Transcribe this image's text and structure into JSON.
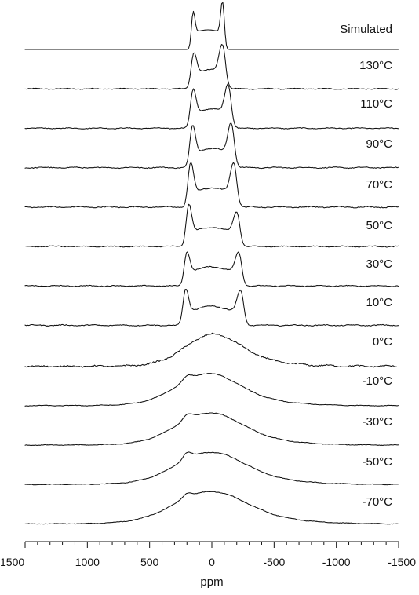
{
  "chart_data": {
    "type": "line",
    "title": "",
    "xlabel": "ppm",
    "ylabel": "",
    "x_range": [
      1500,
      -1500
    ],
    "x_reversed": true,
    "x_ticks": [
      1500,
      1000,
      500,
      0,
      -500,
      -1000,
      -1500
    ],
    "x_tick_labels": [
      "1500",
      "1000",
      "500",
      "0",
      "-500",
      "-1000",
      "-1500"
    ],
    "grid": false,
    "stacked": true,
    "series": [
      {
        "name": "Simulated",
        "shape": "sim",
        "noise": 0
      },
      {
        "name": "130°C",
        "shape": "pake",
        "split": [
          145,
          -85
        ],
        "peaks": [
          0.55,
          0.7
        ],
        "noise": 0.035
      },
      {
        "name": "110°C",
        "shape": "pake",
        "split": [
          150,
          -130
        ],
        "peaks": [
          0.62,
          0.72
        ],
        "noise": 0.035
      },
      {
        "name": "90°C",
        "shape": "pake",
        "split": [
          155,
          -155
        ],
        "peaks": [
          0.7,
          0.75
        ],
        "noise": 0.04
      },
      {
        "name": "70°C",
        "shape": "pake",
        "split": [
          170,
          -175
        ],
        "peaks": [
          0.75,
          0.75
        ],
        "noise": 0.045
      },
      {
        "name": "50°C",
        "shape": "pake",
        "split": [
          185,
          -200
        ],
        "peaks": [
          0.7,
          0.5
        ],
        "noise": 0.04
      },
      {
        "name": "30°C",
        "shape": "pake",
        "split": [
          200,
          -215
        ],
        "peaks": [
          0.5,
          0.48
        ],
        "noise": 0.035
      },
      {
        "name": "10°C",
        "shape": "pake",
        "split": [
          210,
          -230
        ],
        "peaks": [
          0.55,
          0.5
        ],
        "noise": 0.04
      },
      {
        "name": "0°C",
        "shape": "broad",
        "center": 0,
        "width": 380,
        "shoulders": [
          0,
          0
        ],
        "noise": 0.06
      },
      {
        "name": "-10°C",
        "shape": "broad",
        "center": 40,
        "width": 430,
        "shoulders": [
          0.18,
          0.05
        ],
        "noise": 0.025
      },
      {
        "name": "-30°C",
        "shape": "broad",
        "center": 30,
        "width": 450,
        "shoulders": [
          0.22,
          0.05
        ],
        "noise": 0.025
      },
      {
        "name": "-50°C",
        "shape": "broad",
        "center": 20,
        "width": 470,
        "shoulders": [
          0.28,
          0.05
        ],
        "noise": 0.025
      },
      {
        "name": "-70°C",
        "shape": "broad",
        "center": 20,
        "width": 500,
        "shoulders": [
          0.2,
          0.05
        ],
        "noise": 0.025
      }
    ]
  }
}
